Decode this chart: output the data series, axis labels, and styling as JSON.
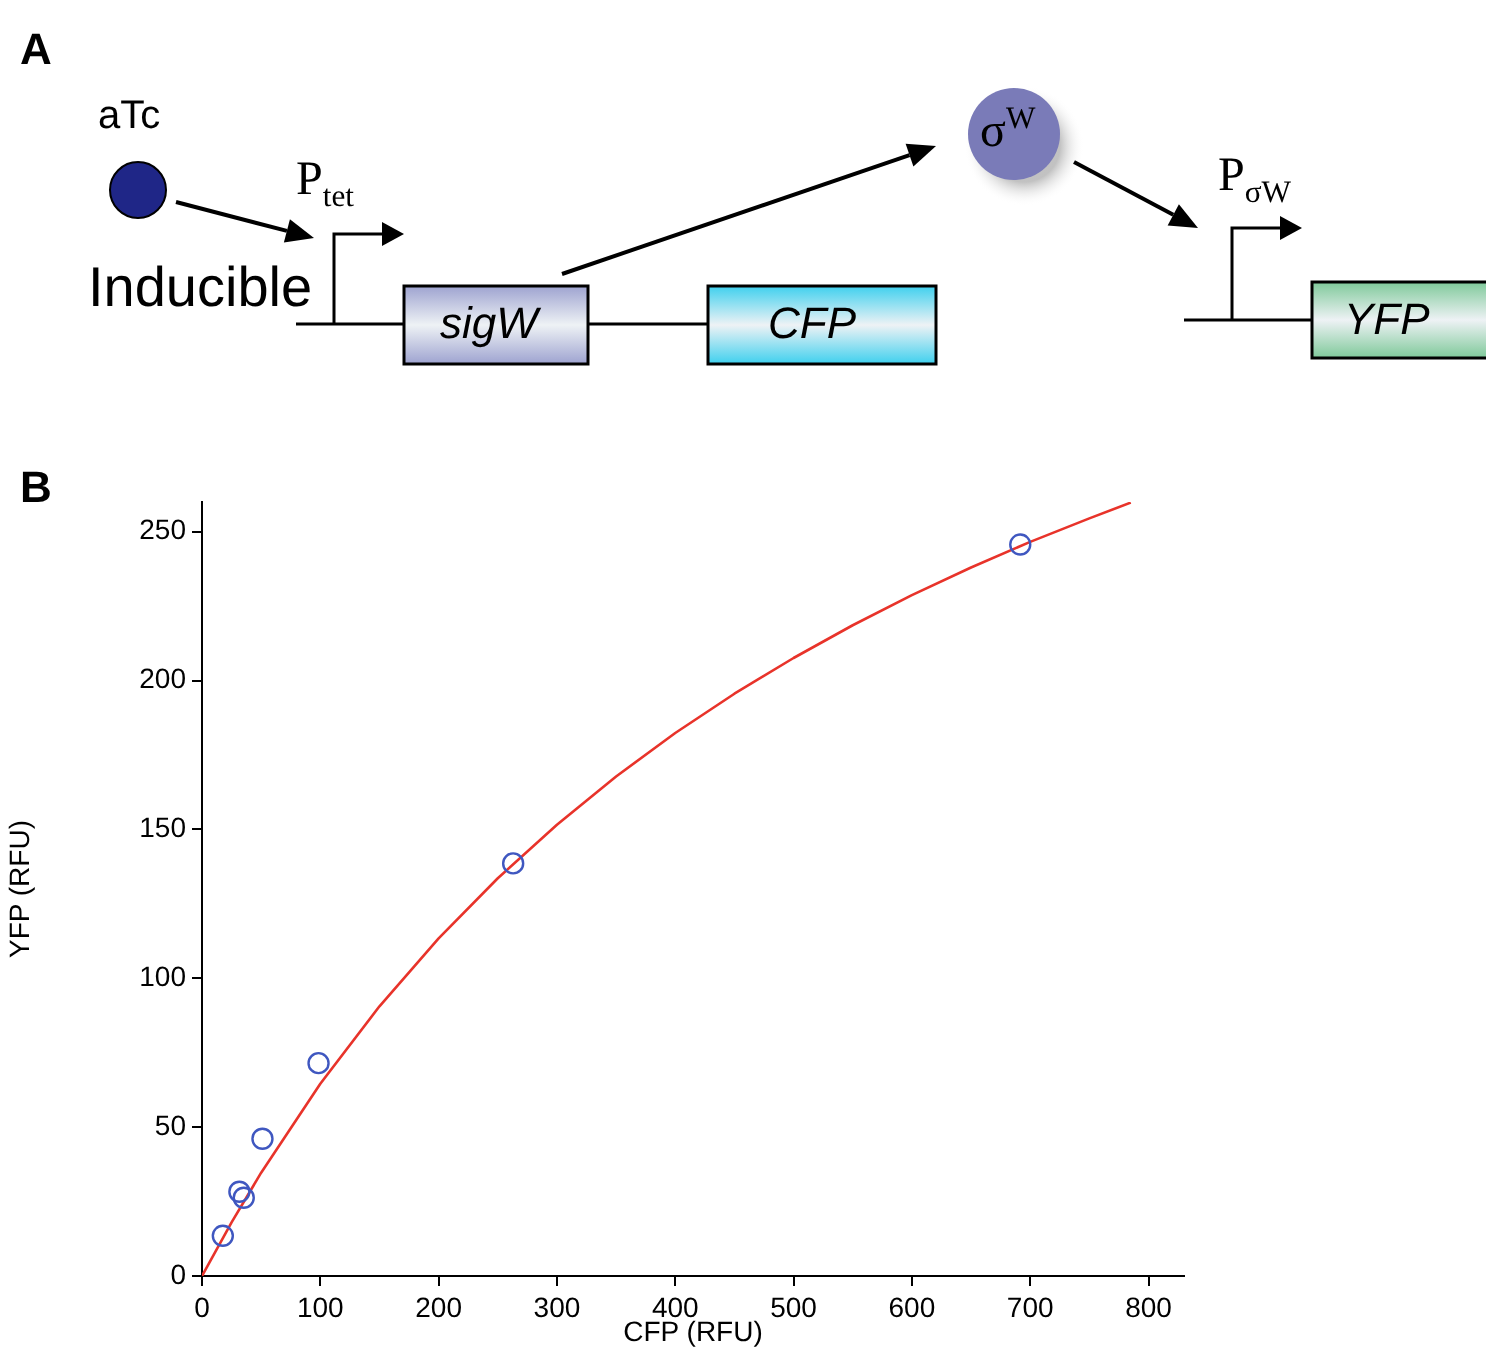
{
  "chart_data": [
    {
      "type": "other",
      "title": "A",
      "annotations": [
        "aTc",
        "P$_{tet}$",
        "Inducible",
        "sigW",
        "CFP",
        "σ$^{W}$",
        "P$_{σW}$",
        "YFP"
      ]
    },
    {
      "type": "scatter",
      "title": "B",
      "xlabel": "CFP (RFU)",
      "ylabel": "YFP (RFU)",
      "xlim": [
        0,
        830
      ],
      "ylim": [
        0,
        260
      ],
      "xticks": [
        0,
        100,
        200,
        300,
        400,
        500,
        600,
        700,
        800
      ],
      "yticks": [
        0,
        50,
        100,
        150,
        200,
        250
      ],
      "grid": false,
      "legend": false,
      "series": [
        {
          "type": "scatter",
          "color": "#3f57c0",
          "marker": "circle",
          "x": [
            17.6,
            31.6,
            35.3,
            51.1,
            98.5,
            263,
            691.6
          ],
          "values": [
            13.5,
            28.3,
            26.3,
            46.1,
            71.5,
            138.6,
            245.7
          ]
        },
        {
          "type": "line",
          "color": "#e8332a",
          "marker": "none",
          "x": [
            0,
            25,
            50,
            100,
            150,
            200,
            250,
            300,
            350,
            400,
            450,
            500,
            550,
            600,
            650,
            700,
            750,
            785
          ],
          "values": [
            0,
            18.0,
            34.7,
            64.6,
            90.6,
            113.4,
            133.6,
            151.6,
            167.8,
            182.4,
            195.6,
            207.6,
            218.6,
            228.7,
            238.0,
            246.6,
            254.5,
            259.8
          ]
        }
      ]
    }
  ]
}
